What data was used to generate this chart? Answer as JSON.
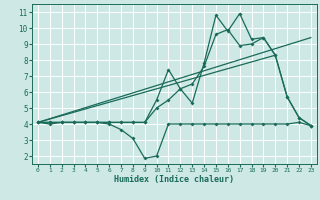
{
  "title": "",
  "xlabel": "Humidex (Indice chaleur)",
  "bg_color": "#cde8e5",
  "line_color": "#1a6b5a",
  "grid_color": "#ffffff",
  "xlim": [
    -0.5,
    23.5
  ],
  "ylim": [
    1.5,
    11.5
  ],
  "xticks": [
    0,
    1,
    2,
    3,
    4,
    5,
    6,
    7,
    8,
    9,
    10,
    11,
    12,
    13,
    14,
    15,
    16,
    17,
    18,
    19,
    20,
    21,
    22,
    23
  ],
  "yticks": [
    2,
    3,
    4,
    5,
    6,
    7,
    8,
    9,
    10,
    11
  ],
  "series1_x": [
    0,
    1,
    2,
    3,
    4,
    5,
    6,
    7,
    8,
    9,
    10,
    11,
    12,
    13,
    14,
    15,
    16,
    17,
    18,
    19,
    20,
    21,
    22,
    23
  ],
  "series1_y": [
    4.1,
    4.0,
    4.1,
    4.1,
    4.1,
    4.1,
    4.0,
    3.65,
    3.1,
    1.85,
    2.0,
    4.0,
    4.0,
    4.0,
    4.0,
    4.0,
    4.0,
    4.0,
    4.0,
    4.0,
    4.0,
    4.0,
    4.1,
    3.9
  ],
  "series2_x": [
    0,
    1,
    2,
    3,
    4,
    5,
    6,
    7,
    8,
    9,
    10,
    11,
    12,
    13,
    14,
    15,
    16,
    17,
    18,
    19,
    20,
    21,
    22,
    23
  ],
  "series2_y": [
    4.1,
    4.1,
    4.1,
    4.1,
    4.1,
    4.1,
    4.1,
    4.1,
    4.1,
    4.1,
    5.0,
    5.5,
    6.2,
    6.5,
    7.6,
    9.6,
    9.9,
    8.9,
    9.0,
    9.4,
    8.3,
    5.7,
    4.4,
    3.9
  ],
  "series3_x": [
    0,
    1,
    2,
    3,
    4,
    5,
    6,
    7,
    8,
    9,
    10,
    11,
    12,
    13,
    14,
    15,
    16,
    17,
    18,
    19,
    20,
    21,
    22,
    23
  ],
  "series3_y": [
    4.1,
    4.1,
    4.1,
    4.1,
    4.1,
    4.1,
    4.1,
    4.1,
    4.1,
    4.1,
    5.5,
    7.4,
    6.2,
    5.3,
    7.8,
    10.8,
    9.8,
    10.9,
    9.3,
    9.4,
    8.3,
    5.7,
    4.4,
    3.9
  ],
  "series4_x": [
    0,
    23
  ],
  "series4_y": [
    4.1,
    9.4
  ],
  "series5_x": [
    0,
    20
  ],
  "series5_y": [
    4.1,
    8.3
  ]
}
